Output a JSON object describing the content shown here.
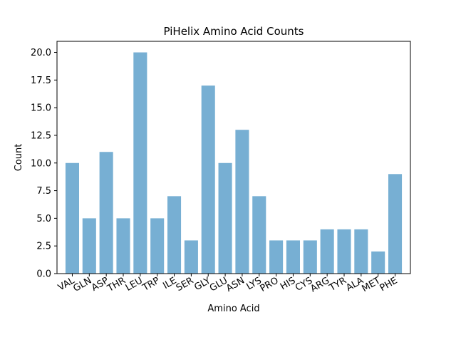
{
  "chart_data": {
    "type": "bar",
    "title": "PiHelix Amino Acid Counts",
    "xlabel": "Amino Acid",
    "ylabel": "Count",
    "categories": [
      "VAL",
      "GLN",
      "ASP",
      "THR",
      "LEU",
      "TRP",
      "ILE",
      "SER",
      "GLY",
      "GLU",
      "ASN",
      "LYS",
      "PRO",
      "HIS",
      "CYS",
      "ARG",
      "TYR",
      "ALA",
      "MET",
      "PHE"
    ],
    "values": [
      10,
      5,
      11,
      5,
      20,
      5,
      7,
      3,
      17,
      10,
      13,
      7,
      3,
      3,
      3,
      4,
      4,
      4,
      2,
      9
    ],
    "ylim": [
      0,
      21
    ],
    "yticks": [
      "0.0",
      "2.5",
      "5.0",
      "7.5",
      "10.0",
      "12.5",
      "15.0",
      "17.5",
      "20.0"
    ],
    "bar_color": "#77afd3",
    "grid": false
  }
}
